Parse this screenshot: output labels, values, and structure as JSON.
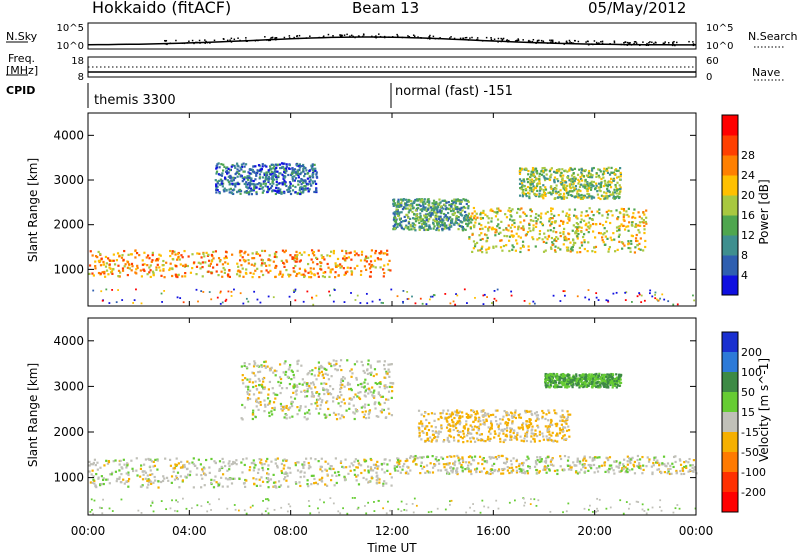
{
  "header": {
    "station": "Hokkaido (fitACF)",
    "beam": "Beam 13",
    "date": "05/May/2012"
  },
  "strips": {
    "nsky_label": "N.Sky",
    "freq_label_1": "Freq.",
    "freq_label_2": "[MHz]",
    "cpid_label": "CPID",
    "nsearch_label": "N.Search",
    "nave_label": "Nave",
    "nsky_ticks": [
      "10^5",
      "10^0"
    ],
    "nsearch_ticks": [
      "10^5",
      "10^0"
    ],
    "freq_ticks": [
      "18",
      "8"
    ],
    "nave_ticks": [
      "60",
      "0"
    ],
    "cpid_segments": [
      {
        "name": "themis 3300",
        "start": 0,
        "end": 12
      },
      {
        "name": "normal (fast) -151",
        "start": 12,
        "end": 24
      }
    ]
  },
  "x_axis": {
    "label": "Time UT",
    "ticks": [
      "00:00",
      "04:00",
      "08:00",
      "12:00",
      "16:00",
      "20:00",
      "00:00"
    ]
  },
  "panels": {
    "power": {
      "ylabel": "Slant Range [km]",
      "yticks": [
        "1000",
        "2000",
        "3000",
        "4000"
      ],
      "cbar_label": "Power [dB]",
      "cbar_ticks": [
        "4",
        "8",
        "12",
        "16",
        "20",
        "24",
        "28"
      ],
      "cbar_colors": [
        "#1010e0",
        "#2f5fb0",
        "#3f8f8f",
        "#4fa64f",
        "#a8c840",
        "#ffc000",
        "#ff8000",
        "#ff4000",
        "#ff0000"
      ]
    },
    "velocity": {
      "ylabel": "Slant Range [km]",
      "yticks": [
        "1000",
        "2000",
        "3000",
        "4000"
      ],
      "cbar_label": "Velocity [m s^-1]",
      "cbar_ticks": [
        "200",
        "100",
        "50",
        "15",
        "-15",
        "-50",
        "-100",
        "-200"
      ],
      "cbar_colors": [
        "#1a30d0",
        "#2d7ad8",
        "#3d8a45",
        "#66cc33",
        "#c0c0b8",
        "#f5b000",
        "#ff7a00",
        "#ff3000",
        "#ff0000"
      ]
    }
  },
  "chart_data": [
    {
      "type": "heatmap",
      "name": "Power",
      "x_range_hours": [
        0,
        24
      ],
      "y_range_km": [
        180,
        4500
      ],
      "scatter_bands": [
        {
          "t0": 0,
          "t1": 12,
          "r0": 850,
          "r1": 1450,
          "level": 24
        },
        {
          "t0": 12,
          "t1": 15,
          "r0": 1900,
          "r1": 2600,
          "level": 12
        },
        {
          "t0": 15,
          "t1": 22,
          "r0": 1400,
          "r1": 2400,
          "level": 20
        },
        {
          "t0": 5,
          "t1": 9,
          "r0": 2700,
          "r1": 3400,
          "level": 8
        },
        {
          "t0": 17,
          "t1": 21,
          "r0": 2600,
          "r1": 3300,
          "level": 16
        }
      ]
    },
    {
      "type": "heatmap",
      "name": "Velocity",
      "x_range_hours": [
        0,
        24
      ],
      "y_range_km": [
        180,
        4500
      ],
      "scatter_bands": [
        {
          "t0": 0,
          "t1": 12,
          "r0": 800,
          "r1": 1450,
          "level": 0
        },
        {
          "t0": 12,
          "t1": 24,
          "r0": 1100,
          "r1": 1500,
          "level": 0
        },
        {
          "t0": 13,
          "t1": 19,
          "r0": 1800,
          "r1": 2500,
          "level": -20
        },
        {
          "t0": 6,
          "t1": 12,
          "r0": 2300,
          "r1": 3600,
          "level": 0
        },
        {
          "t0": 18,
          "t1": 21,
          "r0": 3000,
          "r1": 3300,
          "level": 50
        }
      ]
    }
  ]
}
